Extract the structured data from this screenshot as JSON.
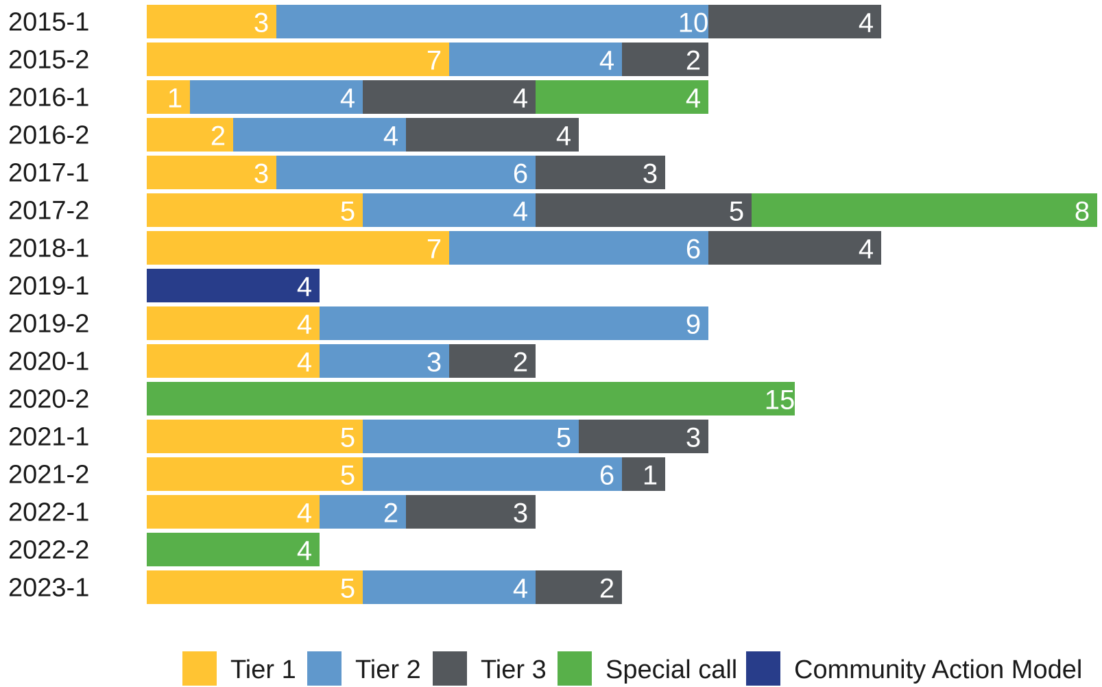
{
  "chart_data": {
    "type": "bar",
    "orientation": "horizontal",
    "stacked": true,
    "categories": [
      "2015-1",
      "2015-2",
      "2016-1",
      "2016-2",
      "2017-1",
      "2017-2",
      "2018-1",
      "2019-1",
      "2019-2",
      "2020-1",
      "2020-2",
      "2021-1",
      "2021-2",
      "2022-1",
      "2022-2",
      "2023-1"
    ],
    "series": [
      {
        "name": "Tier 1",
        "color": "#FFC433",
        "values": [
          3,
          7,
          1,
          2,
          3,
          5,
          7,
          0,
          4,
          4,
          0,
          5,
          5,
          4,
          0,
          5
        ]
      },
      {
        "name": "Tier 2",
        "color": "#6098CC",
        "values": [
          10,
          4,
          4,
          4,
          6,
          4,
          6,
          0,
          9,
          3,
          0,
          5,
          6,
          2,
          0,
          4
        ]
      },
      {
        "name": "Tier 3",
        "color": "#54585C",
        "values": [
          4,
          2,
          4,
          4,
          3,
          5,
          4,
          0,
          0,
          2,
          0,
          3,
          1,
          3,
          0,
          2
        ]
      },
      {
        "name": "Special call",
        "color": "#58B04A",
        "values": [
          0,
          0,
          4,
          0,
          0,
          8,
          0,
          0,
          0,
          0,
          15,
          0,
          0,
          0,
          4,
          0
        ]
      },
      {
        "name": "Community Action Model",
        "color": "#283D8A",
        "values": [
          0,
          0,
          0,
          0,
          0,
          0,
          0,
          4,
          0,
          0,
          0,
          0,
          0,
          0,
          0,
          0
        ]
      }
    ],
    "xlim": [
      0,
      22
    ],
    "grid": false,
    "axis_lines": false,
    "data_labels": true,
    "legend": "bottom"
  }
}
